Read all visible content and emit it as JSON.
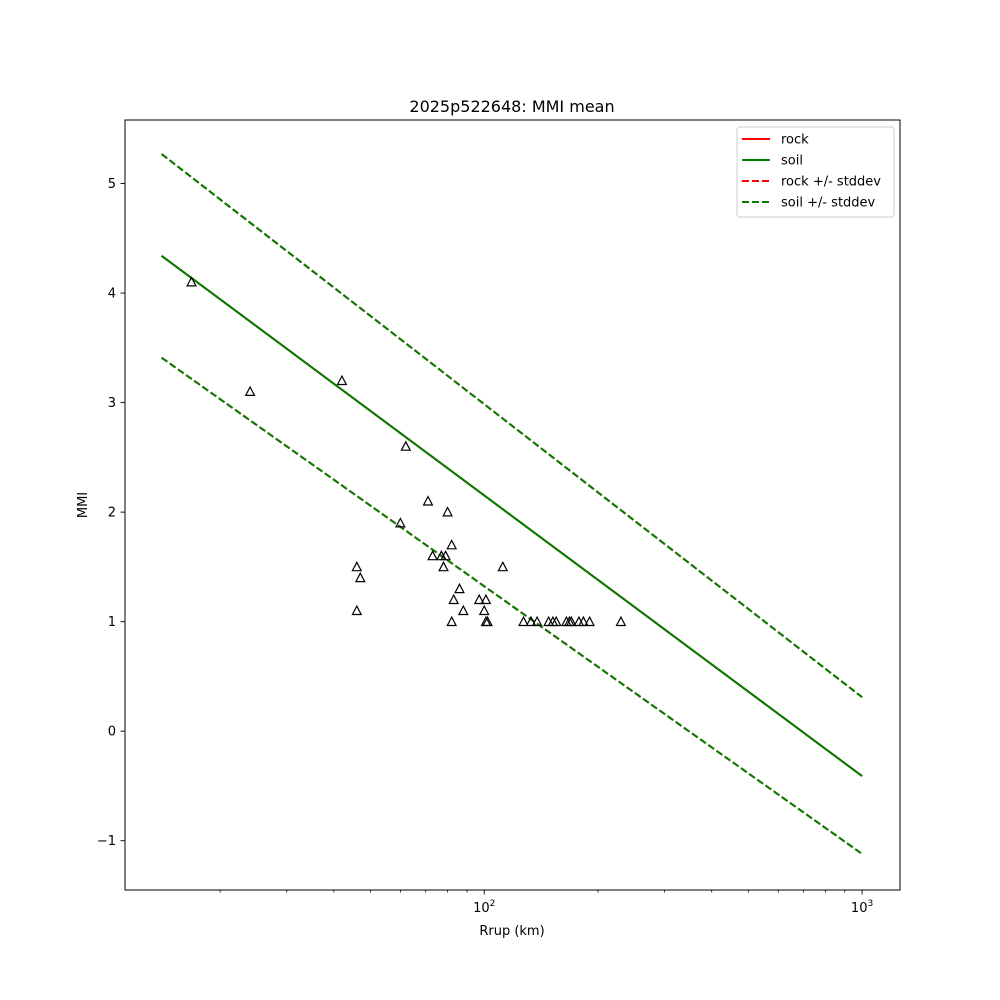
{
  "chart_data": {
    "type": "line",
    "title": "2025p522648: MMI mean",
    "xlabel": "Rrup (km)",
    "ylabel": "MMI",
    "x_scale": "log",
    "xlim": [
      11.2,
      1260
    ],
    "ylim": [
      -1.45,
      5.58
    ],
    "x_ticks": [
      {
        "value": 100,
        "base": "10",
        "exp": "2"
      },
      {
        "value": 1000,
        "base": "10",
        "exp": "3"
      }
    ],
    "y_ticks": [
      {
        "value": -1,
        "label": "−1"
      },
      {
        "value": 0,
        "label": "0"
      },
      {
        "value": 1,
        "label": "1"
      },
      {
        "value": 2,
        "label": "2"
      },
      {
        "value": 3,
        "label": "3"
      },
      {
        "value": 4,
        "label": "4"
      },
      {
        "value": 5,
        "label": "5"
      }
    ],
    "series": [
      {
        "name": "rock",
        "style": "solid",
        "color": "#ff0000",
        "x": [
          14,
          1000
        ],
        "y": [
          4.34,
          -0.41
        ]
      },
      {
        "name": "soil",
        "style": "solid",
        "color": "#008000",
        "x": [
          14,
          1000
        ],
        "y": [
          4.34,
          -0.41
        ]
      },
      {
        "name": "rock +/- stddev",
        "style": "dashed",
        "color": "#ff0000",
        "x": [
          14,
          1000
        ],
        "y": [
          5.27,
          0.31
        ],
        "y2": [
          3.41,
          -1.12
        ]
      },
      {
        "name": "soil +/- stddev",
        "style": "dashed",
        "color": "#008000",
        "x": [
          14,
          1000
        ],
        "y": [
          5.27,
          0.31
        ],
        "y2": [
          3.41,
          -1.12
        ]
      }
    ],
    "observations": {
      "marker": "triangle-open",
      "color": "#000000",
      "points": [
        [
          16.8,
          4.1
        ],
        [
          24,
          3.1
        ],
        [
          42,
          3.2
        ],
        [
          62,
          2.6
        ],
        [
          60,
          1.9
        ],
        [
          71,
          2.1
        ],
        [
          80,
          2.0
        ],
        [
          82,
          1.7
        ],
        [
          73,
          1.6
        ],
        [
          77,
          1.6
        ],
        [
          79,
          1.6
        ],
        [
          78,
          1.5
        ],
        [
          46,
          1.5
        ],
        [
          47,
          1.4
        ],
        [
          46,
          1.1
        ],
        [
          86,
          1.3
        ],
        [
          83,
          1.2
        ],
        [
          97,
          1.2
        ],
        [
          101,
          1.2
        ],
        [
          88,
          1.1
        ],
        [
          100,
          1.1
        ],
        [
          82,
          1.0
        ],
        [
          101,
          1.0
        ],
        [
          102,
          1.0
        ],
        [
          112,
          1.5
        ],
        [
          127,
          1.0
        ],
        [
          133,
          1.0
        ],
        [
          138,
          1.0
        ],
        [
          148,
          1.0
        ],
        [
          152,
          1.0
        ],
        [
          155,
          1.0
        ],
        [
          165,
          1.0
        ],
        [
          168,
          1.0
        ],
        [
          170,
          1.0
        ],
        [
          178,
          1.0
        ],
        [
          183,
          1.0
        ],
        [
          190,
          1.0
        ],
        [
          230,
          1.0
        ]
      ]
    },
    "legend": "top-right",
    "grid": false
  }
}
